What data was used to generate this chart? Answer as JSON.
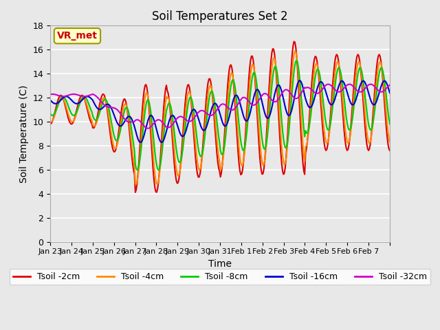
{
  "title": "Soil Temperatures Set 2",
  "xlabel": "Time",
  "ylabel": "Soil Temperature (C)",
  "ylim": [
    0,
    18
  ],
  "yticks": [
    0,
    2,
    4,
    6,
    8,
    10,
    12,
    14,
    16,
    18
  ],
  "xtick_labels": [
    "Jan 23",
    "Jan 24",
    "Jan 25",
    "Jan 26",
    "Jan 27",
    "Jan 28",
    "Jan 29",
    "Jan 30",
    "Jan 31",
    "Feb 1",
    "Feb 2",
    "Feb 3",
    "Feb 4",
    "Feb 5",
    "Feb 6",
    "Feb 7"
  ],
  "series_colors": [
    "#dd0000",
    "#ff8800",
    "#00cc00",
    "#0000cc",
    "#cc00cc"
  ],
  "series_labels": [
    "Tsoil -2cm",
    "Tsoil -4cm",
    "Tsoil -8cm",
    "Tsoil -16cm",
    "Tsoil -32cm"
  ],
  "annotation_text": "VR_met",
  "annotation_box_color": "#ffffcc",
  "annotation_text_color": "#cc0000",
  "background_color": "#e8e8e8",
  "grid_color": "#ffffff",
  "linewidth": 1.5
}
